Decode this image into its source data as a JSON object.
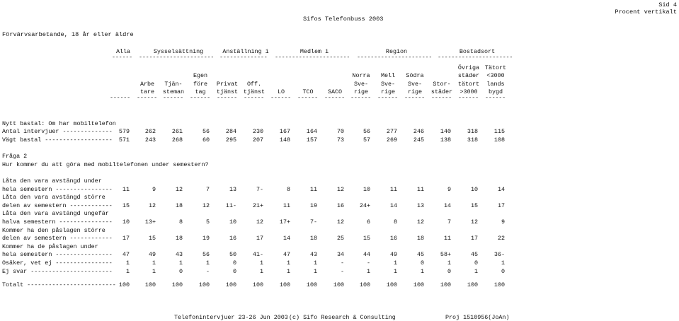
{
  "header": {
    "page": "Sid 4",
    "subtitle": "Procent vertikalt",
    "title": "Sifos Telefonbuss 2003",
    "population": "Förvärvsarbetande, 18 år eller äldre"
  },
  "group_headers": [
    {
      "label": "Alla",
      "x": 0
    },
    {
      "label": "Sysselsättning"
    },
    {
      "label": "Anställning i"
    },
    {
      "label": "Medlem i"
    },
    {
      "label": "Region"
    },
    {
      "label": "Bostadsort"
    }
  ],
  "columns": [
    {
      "lines": [
        "",
        "",
        ""
      ]
    },
    {
      "lines": [
        "",
        "Arbe",
        "tare"
      ]
    },
    {
      "lines": [
        "",
        "Tjän-",
        "steman"
      ]
    },
    {
      "lines": [
        "Egen",
        "före",
        "tag"
      ]
    },
    {
      "lines": [
        "",
        "Privat",
        "tjänst"
      ]
    },
    {
      "lines": [
        "",
        "Off.",
        "tjänst"
      ]
    },
    {
      "lines": [
        "",
        "",
        "LO"
      ]
    },
    {
      "lines": [
        "",
        "",
        "TCO"
      ]
    },
    {
      "lines": [
        "",
        "",
        "SACO"
      ]
    },
    {
      "lines": [
        "Norra",
        "Sve-",
        "rige"
      ]
    },
    {
      "lines": [
        "Mell",
        "Sve-",
        "rige"
      ]
    },
    {
      "lines": [
        "Södra",
        "Sve-",
        "rige"
      ]
    },
    {
      "lines": [
        "",
        "Stor-",
        "städer"
      ]
    },
    {
      "lines": [
        "Övriga",
        "städer",
        "tätort",
        ">3000"
      ]
    },
    {
      "lines": [
        "Tätort",
        "<3000",
        "lands",
        "bygd"
      ]
    }
  ],
  "base": {
    "title": "Nytt bastal: Om har mobiltelefon",
    "rows": [
      {
        "label": "Antal intervjuer --------------",
        "values": [
          "579",
          "262",
          "261",
          "56",
          "284",
          "230",
          "167",
          "164",
          "70",
          "56",
          "277",
          "246",
          "140",
          "318",
          "115"
        ]
      },
      {
        "label": "Vägt bastal -------------------",
        "values": [
          "571",
          "243",
          "268",
          "60",
          "295",
          "207",
          "148",
          "157",
          "73",
          "57",
          "269",
          "245",
          "138",
          "318",
          "108"
        ]
      }
    ]
  },
  "question": {
    "number": "Fråga 2",
    "text": "Hur kommer du att göra med mobiltelefonen under semestern?"
  },
  "rows": [
    {
      "pre": "Låta den vara avstängd under",
      "label": "hela semestern ----------------",
      "values": [
        "11",
        "9",
        "12",
        "7",
        "13",
        "7-",
        "8",
        "11",
        "12",
        "10",
        "11",
        "11",
        "9",
        "10",
        "14"
      ]
    },
    {
      "pre": "Låta den vara avstängd större",
      "label": "delen av semestern ------------",
      "values": [
        "15",
        "12",
        "18",
        "12",
        "11-",
        "21+",
        "11",
        "19",
        "16",
        "24+",
        "14",
        "13",
        "14",
        "15",
        "17"
      ]
    },
    {
      "pre": "Låta den vara avstängd ungefär",
      "label": "halva semestern ---------------",
      "values": [
        "10",
        "13+",
        "8",
        "5",
        "10",
        "12",
        "17+",
        "7-",
        "12",
        "6",
        "8",
        "12",
        "7",
        "12",
        "9"
      ]
    },
    {
      "pre": "Kommer ha den påslagen större",
      "label": "delen av semestern ------------",
      "values": [
        "17",
        "15",
        "18",
        "19",
        "16",
        "17",
        "14",
        "18",
        "25",
        "15",
        "16",
        "18",
        "11",
        "17",
        "22"
      ]
    },
    {
      "pre": "Kommer ha de påslagen under",
      "label": "hela semestern ----------------",
      "values": [
        "47",
        "49",
        "43",
        "56",
        "50",
        "41-",
        "47",
        "43",
        "34",
        "44",
        "49",
        "45",
        "58+",
        "45",
        "36-"
      ]
    },
    {
      "pre": "",
      "label": "Osäker, vet ej ----------------",
      "values": [
        "1",
        "1",
        "1",
        "1",
        "0",
        "1",
        "1",
        "1",
        "-",
        "-",
        "1",
        "0",
        "1",
        "0",
        "1"
      ]
    },
    {
      "pre": "",
      "label": "Ej svar -----------------------",
      "values": [
        "1",
        "1",
        "0",
        "-",
        "0",
        "1",
        "1",
        "1",
        "-",
        "1",
        "1",
        "1",
        "0",
        "1",
        "0"
      ]
    }
  ],
  "total": {
    "label": "Totalt -------------------------",
    "values": [
      "100",
      "100",
      "100",
      "100",
      "100",
      "100",
      "100",
      "100",
      "100",
      "100",
      "100",
      "100",
      "100",
      "100",
      "100"
    ]
  },
  "footer": {
    "interviews": "Telefonintervjuer 23-26 Jun 2003",
    "source": "(c) Sifo Research & Consulting",
    "project": "Proj 1510956(JoAn)"
  }
}
